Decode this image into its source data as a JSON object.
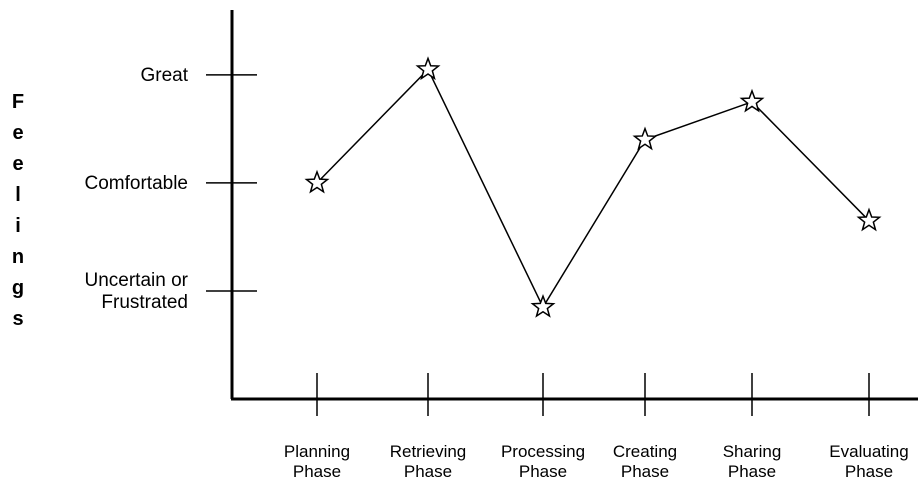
{
  "chart_data": {
    "type": "line",
    "categories": [
      [
        "Planning",
        "Phase"
      ],
      [
        "Retrieving",
        "Phase"
      ],
      [
        "Processing",
        "Phase"
      ],
      [
        "Creating",
        "Phase"
      ],
      [
        "Sharing",
        "Phase"
      ],
      [
        "Evaluating",
        "Phase"
      ]
    ],
    "ylabel": "Feelings",
    "y_levels": [
      {
        "value": 3,
        "label": [
          "Great"
        ]
      },
      {
        "value": 2,
        "label": [
          "Comfortable"
        ]
      },
      {
        "value": 1,
        "label": [
          "Uncertain or",
          "Frustrated"
        ]
      }
    ],
    "values": [
      2.0,
      3.05,
      0.85,
      2.4,
      2.75,
      1.65
    ],
    "ylim": [
      0,
      3.6
    ],
    "marker": "star",
    "line_color": "#000000",
    "marker_color": "#000000",
    "grid": false,
    "legend": "none"
  }
}
